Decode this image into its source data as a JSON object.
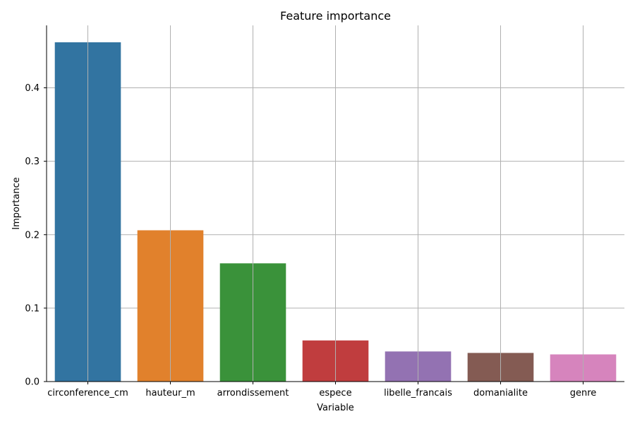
{
  "chart_data": {
    "type": "bar",
    "title": "Feature importance",
    "xlabel": "Variable",
    "ylabel": "Importance",
    "categories": [
      "circonference_cm",
      "hauteur_m",
      "arrondissement",
      "espece",
      "libelle_francais",
      "domanialite",
      "genre"
    ],
    "values": [
      0.462,
      0.206,
      0.161,
      0.056,
      0.041,
      0.039,
      0.037
    ],
    "colors": [
      "#3274a1",
      "#e1812c",
      "#3a923a",
      "#c03d3e",
      "#9372b2",
      "#845b53",
      "#d684bd"
    ],
    "ylim": [
      0,
      0.485
    ],
    "yticks": [
      0.0,
      0.1,
      0.2,
      0.3,
      0.4
    ],
    "ytick_labels": [
      "0.0",
      "0.1",
      "0.2",
      "0.3",
      "0.4"
    ],
    "grid": true,
    "legend": false
  }
}
